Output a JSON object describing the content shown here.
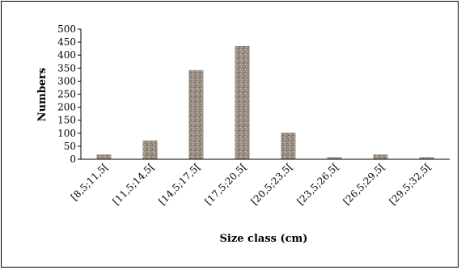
{
  "chart_data": {
    "type": "bar",
    "title": "",
    "xlabel": "Size class (cm)",
    "ylabel": "Numbers",
    "ylim": [
      0,
      500
    ],
    "yticks": [
      0,
      50,
      100,
      150,
      200,
      250,
      300,
      350,
      400,
      450,
      500
    ],
    "grid": false,
    "legend": "none",
    "bar_color": "#9c8f84",
    "categories": [
      "[8,5;11,5[",
      "[11,5;14,5[",
      "[14,5;17,5[",
      "[17,5;20,5[",
      "[20,5;23,5[",
      "[23,5;26,5[",
      "[26,5;29,5[",
      "[29,5;32,5["
    ],
    "values": [
      18,
      72,
      342,
      435,
      102,
      8,
      18,
      8
    ]
  }
}
